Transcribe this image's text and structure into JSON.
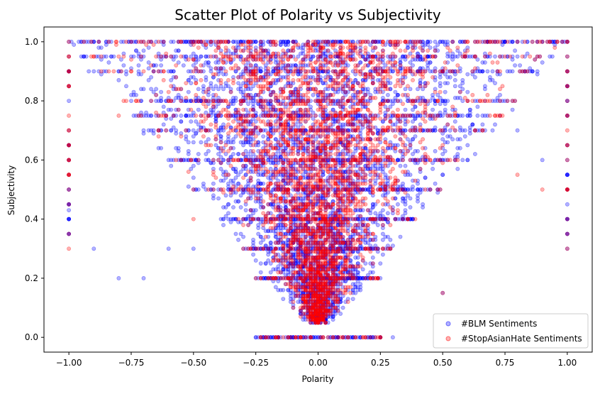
{
  "chart_data": {
    "type": "scatter",
    "title": "Scatter Plot of Polarity vs Subjectivity",
    "xlabel": "Polarity",
    "ylabel": "Subjectivity",
    "xlim": [
      -1.1,
      1.1
    ],
    "ylim": [
      -0.05,
      1.05
    ],
    "xticks": [
      -1.0,
      -0.75,
      -0.5,
      -0.25,
      0.0,
      0.25,
      0.5,
      0.75,
      1.0
    ],
    "xtick_labels": [
      "−1.00",
      "−0.75",
      "−0.50",
      "−0.25",
      "0.00",
      "0.25",
      "0.50",
      "0.75",
      "1.00"
    ],
    "yticks": [
      0.0,
      0.2,
      0.4,
      0.6,
      0.8,
      1.0
    ],
    "ytick_labels": [
      "0.0",
      "0.2",
      "0.4",
      "0.6",
      "0.8",
      "1.0"
    ],
    "grid": false,
    "legend_position": "lower right",
    "series": [
      {
        "name": "#BLM Sentiments",
        "color": "#0000ff",
        "alpha": 0.3,
        "distribution": "dense V-shaped cloud: subjectivity >= |polarity|, spread across polarity -0.75..0.75, many points on bands 0.0, 0.5, 1.0",
        "sample_points": [
          [
            -1.0,
            1.0
          ],
          [
            -1.0,
            0.9
          ],
          [
            -1.0,
            0.55
          ],
          [
            -1.0,
            0.5
          ],
          [
            -1.0,
            0.43
          ],
          [
            -1.0,
            0.6
          ],
          [
            -0.9,
            1.0
          ],
          [
            -0.9,
            0.3
          ],
          [
            -0.8,
            0.2
          ],
          [
            -0.8,
            0.9
          ],
          [
            -0.75,
            0.8
          ],
          [
            -0.7,
            0.2
          ],
          [
            -0.6,
            0.3
          ],
          [
            -0.5,
            0.3
          ],
          [
            -0.5,
            0.75
          ],
          [
            -0.4,
            0.5
          ],
          [
            -0.3,
            0.3
          ],
          [
            -0.25,
            0.0
          ],
          [
            0.0,
            0.0
          ],
          [
            0.0,
            0.5
          ],
          [
            0.0,
            1.0
          ],
          [
            0.1,
            0.1
          ],
          [
            0.2,
            0.6
          ],
          [
            0.3,
            0.0
          ],
          [
            0.5,
            0.15
          ],
          [
            0.5,
            0.9
          ],
          [
            0.7,
            0.8
          ],
          [
            0.8,
            0.7
          ],
          [
            0.9,
            0.6
          ],
          [
            1.0,
            1.0
          ],
          [
            1.0,
            0.9
          ],
          [
            1.0,
            0.6
          ],
          [
            1.0,
            0.75
          ],
          [
            1.0,
            0.3
          ],
          [
            1.0,
            0.4
          ]
        ]
      },
      {
        "name": "#StopAsianHate Sentiments",
        "color": "#ff0000",
        "alpha": 0.3,
        "distribution": "V-shaped cloud centered near polarity 0, concentrated between -0.3 and 0.3, overlapping the BLM cloud",
        "sample_points": [
          [
            -1.0,
            1.0
          ],
          [
            -1.0,
            0.9
          ],
          [
            -0.9,
            0.95
          ],
          [
            -0.8,
            0.75
          ],
          [
            -0.75,
            0.9
          ],
          [
            -0.6,
            0.8
          ],
          [
            -0.5,
            0.4
          ],
          [
            -0.3,
            0.3
          ],
          [
            -0.2,
            0.2
          ],
          [
            -0.1,
            0.1
          ],
          [
            0.0,
            0.05
          ],
          [
            0.0,
            0.5
          ],
          [
            0.0,
            0.7
          ],
          [
            0.1,
            0.15
          ],
          [
            0.2,
            0.35
          ],
          [
            0.25,
            0.0
          ],
          [
            0.3,
            0.6
          ],
          [
            0.5,
            0.15
          ],
          [
            0.5,
            0.9
          ],
          [
            0.8,
            0.55
          ],
          [
            0.9,
            0.5
          ],
          [
            1.0,
            1.0
          ],
          [
            1.0,
            0.9
          ],
          [
            1.0,
            0.75
          ],
          [
            1.0,
            0.5
          ],
          [
            1.0,
            0.3
          ]
        ]
      }
    ]
  }
}
